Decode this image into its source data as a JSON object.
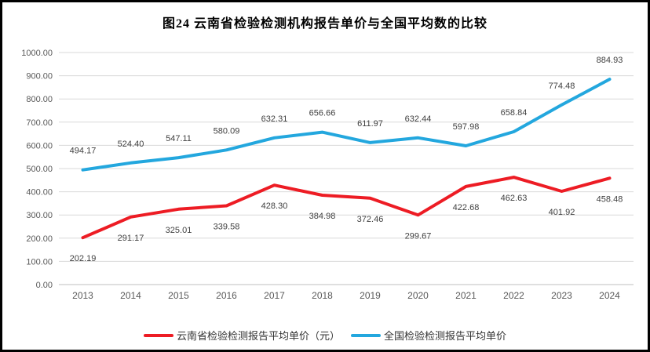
{
  "title": "图24 云南省检验检测机构报告单价与全国平均数的比较",
  "chart_data": {
    "type": "line",
    "title": "图24 云南省检验检测机构报告单价与全国平均数的比较",
    "categories": [
      "2013",
      "2014",
      "2015",
      "2016",
      "2017",
      "2018",
      "2019",
      "2020",
      "2021",
      "2022",
      "2023",
      "2024"
    ],
    "series": [
      {
        "name": "云南省检验检测报告平均单价（元）",
        "color": "#ed1c24",
        "values": [
          202.19,
          291.17,
          325.01,
          339.58,
          428.3,
          384.98,
          372.46,
          299.67,
          422.68,
          462.63,
          401.92,
          458.48
        ],
        "labels": [
          "202.19",
          "291.17",
          "325.01",
          "339.58",
          "428.30",
          "384.98",
          "372.46",
          "299.67",
          "422.68",
          "462.63",
          "401.92",
          "458.48"
        ],
        "label_side": "below"
      },
      {
        "name": "全国检验检测报告平均单价",
        "color": "#23a7de",
        "values": [
          494.17,
          524.4,
          547.11,
          580.09,
          632.31,
          656.66,
          611.97,
          632.44,
          597.98,
          658.84,
          774.48,
          884.93
        ],
        "labels": [
          "494.17",
          "524.40",
          "547.11",
          "580.09",
          "632.31",
          "656.66",
          "611.97",
          "632.44",
          "597.98",
          "658.84",
          "774.48",
          "884.93"
        ],
        "label_side": "above"
      }
    ],
    "ylim": [
      0,
      1000
    ],
    "ytick_step": 100,
    "ytick_labels": [
      "0.00",
      "100.00",
      "200.00",
      "300.00",
      "400.00",
      "500.00",
      "600.00",
      "700.00",
      "800.00",
      "900.00",
      "1000.00"
    ],
    "grid": true,
    "legend_position": "bottom",
    "colors": {
      "gridline": "#d9d9d9",
      "axis_line": "#bfbfbf",
      "tick_text": "#595959",
      "data_label_text": "#404040"
    }
  }
}
